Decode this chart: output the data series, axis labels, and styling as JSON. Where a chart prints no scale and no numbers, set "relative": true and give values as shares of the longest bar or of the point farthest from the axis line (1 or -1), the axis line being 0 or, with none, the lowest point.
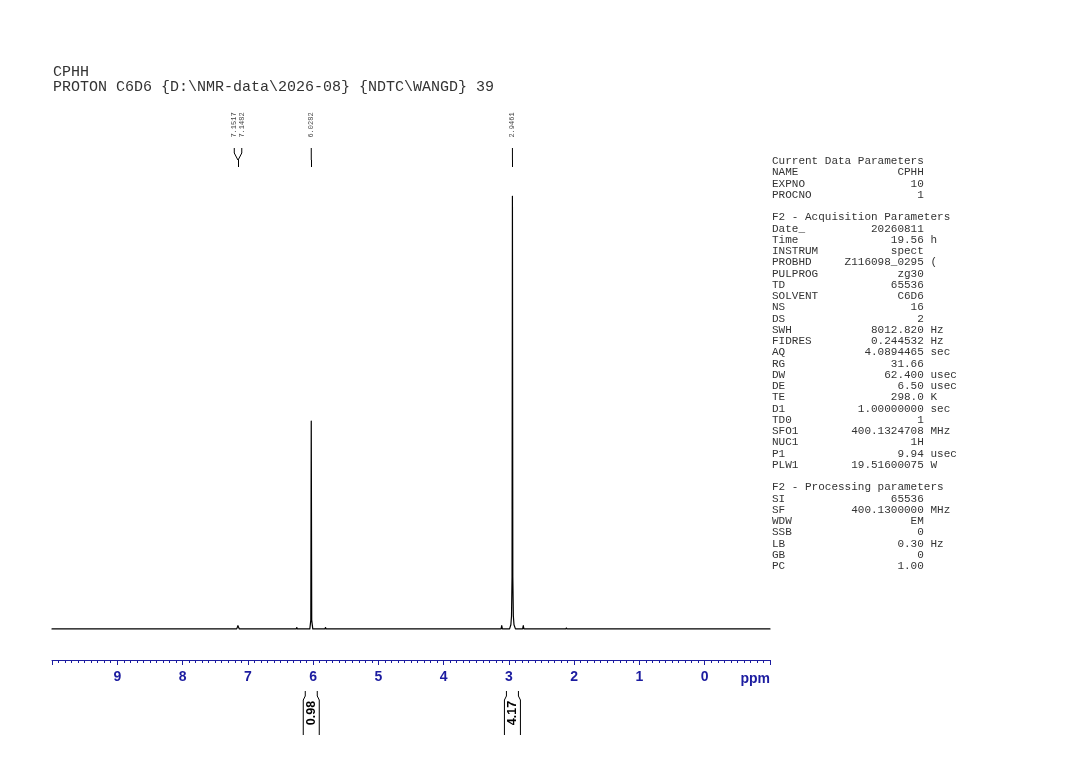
{
  "chart_data": {
    "type": "line",
    "title": "CPHH",
    "subtitle": "PROTON C6D6 {D:\\NMR-data\\2026-08} {NDTC\\WANGD} 39",
    "xlabel": "ppm",
    "relative": true,
    "xlim": [
      10.0,
      -1.0
    ],
    "xticks": [
      9,
      8,
      7,
      6,
      5,
      4,
      3,
      2,
      1,
      0
    ],
    "x2lim": [
      7.1517,
      2.9461
    ],
    "x2ticks": [
      7.1517,
      7.1482,
      6.0282,
      2.9461
    ],
    "x": [
      10.0,
      7.17,
      7.1517,
      7.15,
      7.1482,
      7.13,
      6.26,
      6.25,
      6.24,
      6.05,
      6.035,
      6.0282,
      6.021,
      6.005,
      5.82,
      5.81,
      5.8,
      3.12,
      3.11,
      3.1,
      2.99,
      2.97,
      2.96,
      2.952,
      2.9461,
      2.94,
      2.932,
      2.922,
      2.9,
      2.79,
      2.78,
      2.77,
      2.13,
      2.12,
      2.11,
      -1.0
    ],
    "series": [
      {
        "color": "#000000",
        "values": [
          0.067,
          0.067,
          0.074,
          0.073,
          0.074,
          0.067,
          0.067,
          0.07,
          0.067,
          0.067,
          0.086,
          0.515,
          0.086,
          0.067,
          0.067,
          0.07,
          0.067,
          0.067,
          0.074,
          0.067,
          0.067,
          0.076,
          0.095,
          0.179,
          1,
          0.179,
          0.095,
          0.076,
          0.067,
          0.067,
          0.074,
          0.067,
          0.067,
          0.069,
          0.067,
          0.067
        ]
      }
    ],
    "annotations": [
      "Current Data Parameters",
      "NAME\tCPHH",
      "EXPNO\t10",
      "PROCNO\t1",
      "F2 - Acquisition Parameters",
      "Date_\t20260811",
      "Time\t19.56\th",
      "INSTRUM\tspect",
      "PROBHD\tZ116098_0295\t(",
      "PULPROG\tzg30",
      "TD\t65536",
      "SOLVENT\tC6D6",
      "NS\t16",
      "DS\t2",
      "SWH\t8012.820\tHz",
      "FIDRES\t0.244532\tHz",
      "AQ\t4.0894465\tsec",
      "RG\t31.66",
      "DW\t62.400\tusec",
      "DE\t6.50\tusec",
      "TE\t298.0\tK",
      "D1\t1.00000000\tsec",
      "TD0\t1",
      "SFO1\t400.1324708\tMHz",
      "NUC1\t1H",
      "P1\t9.94\tusec",
      "PLW1\t19.51600075\tW",
      "F2 - Processing parameters",
      "SI\t65536",
      "SF\t400.1300000\tMHz",
      "WDW\tEM",
      "SSB\t0",
      "LB\t0.30\tHz",
      "GB\t0",
      "PC\t1.00",
      "0.98",
      "4.17"
    ]
  }
}
